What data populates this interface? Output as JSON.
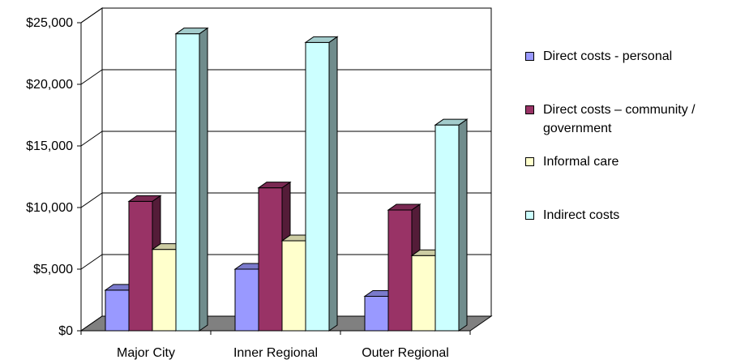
{
  "chart_data": {
    "type": "bar",
    "categories": [
      "Major City",
      "Inner Regional",
      "Outer Regional"
    ],
    "series": [
      {
        "name": "Direct costs - personal",
        "color": "#9999ff",
        "values": [
          3300,
          5000,
          2800
        ]
      },
      {
        "name": "Direct costs – community / government",
        "color": "#993366",
        "values": [
          10500,
          11600,
          9800
        ]
      },
      {
        "name": "Informal care",
        "color": "#ffffcc",
        "values": [
          6600,
          7300,
          6100
        ]
      },
      {
        "name": "Indirect costs",
        "color": "#ccffff",
        "values": [
          24100,
          23400,
          16700
        ]
      }
    ],
    "ylim": [
      0,
      25000
    ],
    "yticks": [
      "$0",
      "$5,000",
      "$10,000",
      "$15,000",
      "$20,000",
      "$25,000"
    ],
    "grid": true,
    "legend_position": "right",
    "title": "",
    "xlabel": "",
    "ylabel": ""
  }
}
